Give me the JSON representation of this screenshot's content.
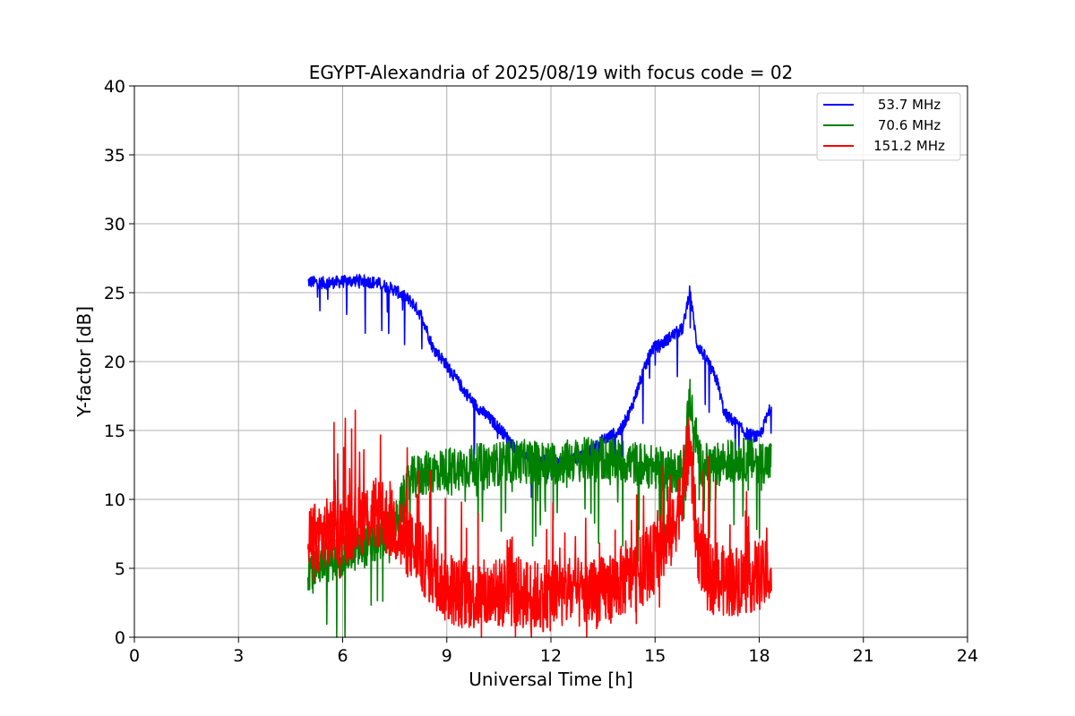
{
  "chart_data": {
    "type": "line",
    "title": "EGYPT-Alexandria of 2025/08/19 with focus code = 02",
    "xlabel": "Universal Time [h]",
    "ylabel": "Y-factor [dB]",
    "xlim": [
      0,
      24
    ],
    "ylim": [
      0,
      40
    ],
    "xticks": [
      0,
      3,
      6,
      9,
      12,
      15,
      18,
      21,
      24
    ],
    "yticks": [
      0,
      5,
      10,
      15,
      20,
      25,
      30,
      35,
      40
    ],
    "grid": true,
    "legend_position": "top-right",
    "series": [
      {
        "name": "53.7 MHz",
        "color": "#0000ff",
        "x": [
          5.0,
          5.5,
          6.0,
          6.5,
          7.0,
          7.5,
          8.0,
          8.3,
          8.6,
          8.9,
          9.2,
          9.5,
          9.8,
          10.1,
          10.5,
          10.8,
          11.0,
          11.5,
          12.0,
          12.5,
          13.0,
          13.5,
          14.0,
          14.3,
          14.6,
          14.9,
          15.2,
          15.5,
          15.8,
          16.0,
          16.2,
          16.5,
          16.8,
          17.0,
          17.3,
          17.6,
          18.0,
          18.35
        ],
        "y": [
          25.8,
          25.7,
          25.8,
          25.9,
          25.7,
          25.2,
          24.3,
          23.2,
          21.0,
          20.1,
          19.0,
          17.9,
          16.9,
          16.2,
          15.2,
          14.3,
          13.6,
          13.0,
          12.6,
          12.8,
          13.3,
          14.3,
          15.0,
          16.5,
          18.8,
          20.9,
          21.3,
          21.9,
          22.4,
          25.2,
          21.3,
          20.1,
          18.5,
          16.2,
          15.6,
          14.8,
          14.5,
          16.8
        ]
      },
      {
        "name": "70.6 MHz",
        "color": "#008000",
        "x": [
          5.0,
          5.5,
          6.0,
          6.5,
          7.0,
          7.5,
          7.8,
          8.0,
          8.5,
          9.0,
          9.5,
          10.0,
          10.5,
          11.0,
          11.5,
          12.0,
          12.5,
          13.0,
          13.5,
          14.0,
          14.5,
          15.0,
          15.5,
          15.8,
          16.0,
          16.3,
          16.7,
          17.0,
          17.5,
          18.0,
          18.35
        ],
        "y": [
          5.0,
          5.5,
          6.0,
          6.5,
          7.0,
          8.0,
          10.5,
          11.5,
          12.0,
          12.2,
          12.3,
          12.5,
          12.6,
          12.8,
          12.7,
          12.6,
          12.8,
          12.9,
          13.0,
          12.8,
          12.6,
          12.3,
          12.0,
          12.2,
          17.5,
          12.6,
          12.4,
          12.8,
          12.9,
          12.8,
          12.7
        ]
      },
      {
        "name": "151.2 MHz",
        "color": "#ff0000",
        "x": [
          5.0,
          5.5,
          6.0,
          6.5,
          7.0,
          7.5,
          8.0,
          8.5,
          9.0,
          9.5,
          10.0,
          10.5,
          11.0,
          11.5,
          12.0,
          12.5,
          13.0,
          13.5,
          14.0,
          14.5,
          15.0,
          15.5,
          15.8,
          16.0,
          16.2,
          16.5,
          17.0,
          17.5,
          18.0,
          18.35
        ],
        "y": [
          7.0,
          7.5,
          7.8,
          8.5,
          9.0,
          8.0,
          6.5,
          5.0,
          3.5,
          3.2,
          3.0,
          3.2,
          3.3,
          3.0,
          3.0,
          3.2,
          3.1,
          3.3,
          4.0,
          4.5,
          5.8,
          7.5,
          11.0,
          14.0,
          7.0,
          4.5,
          4.0,
          4.2,
          4.5,
          4.3
        ]
      }
    ]
  }
}
